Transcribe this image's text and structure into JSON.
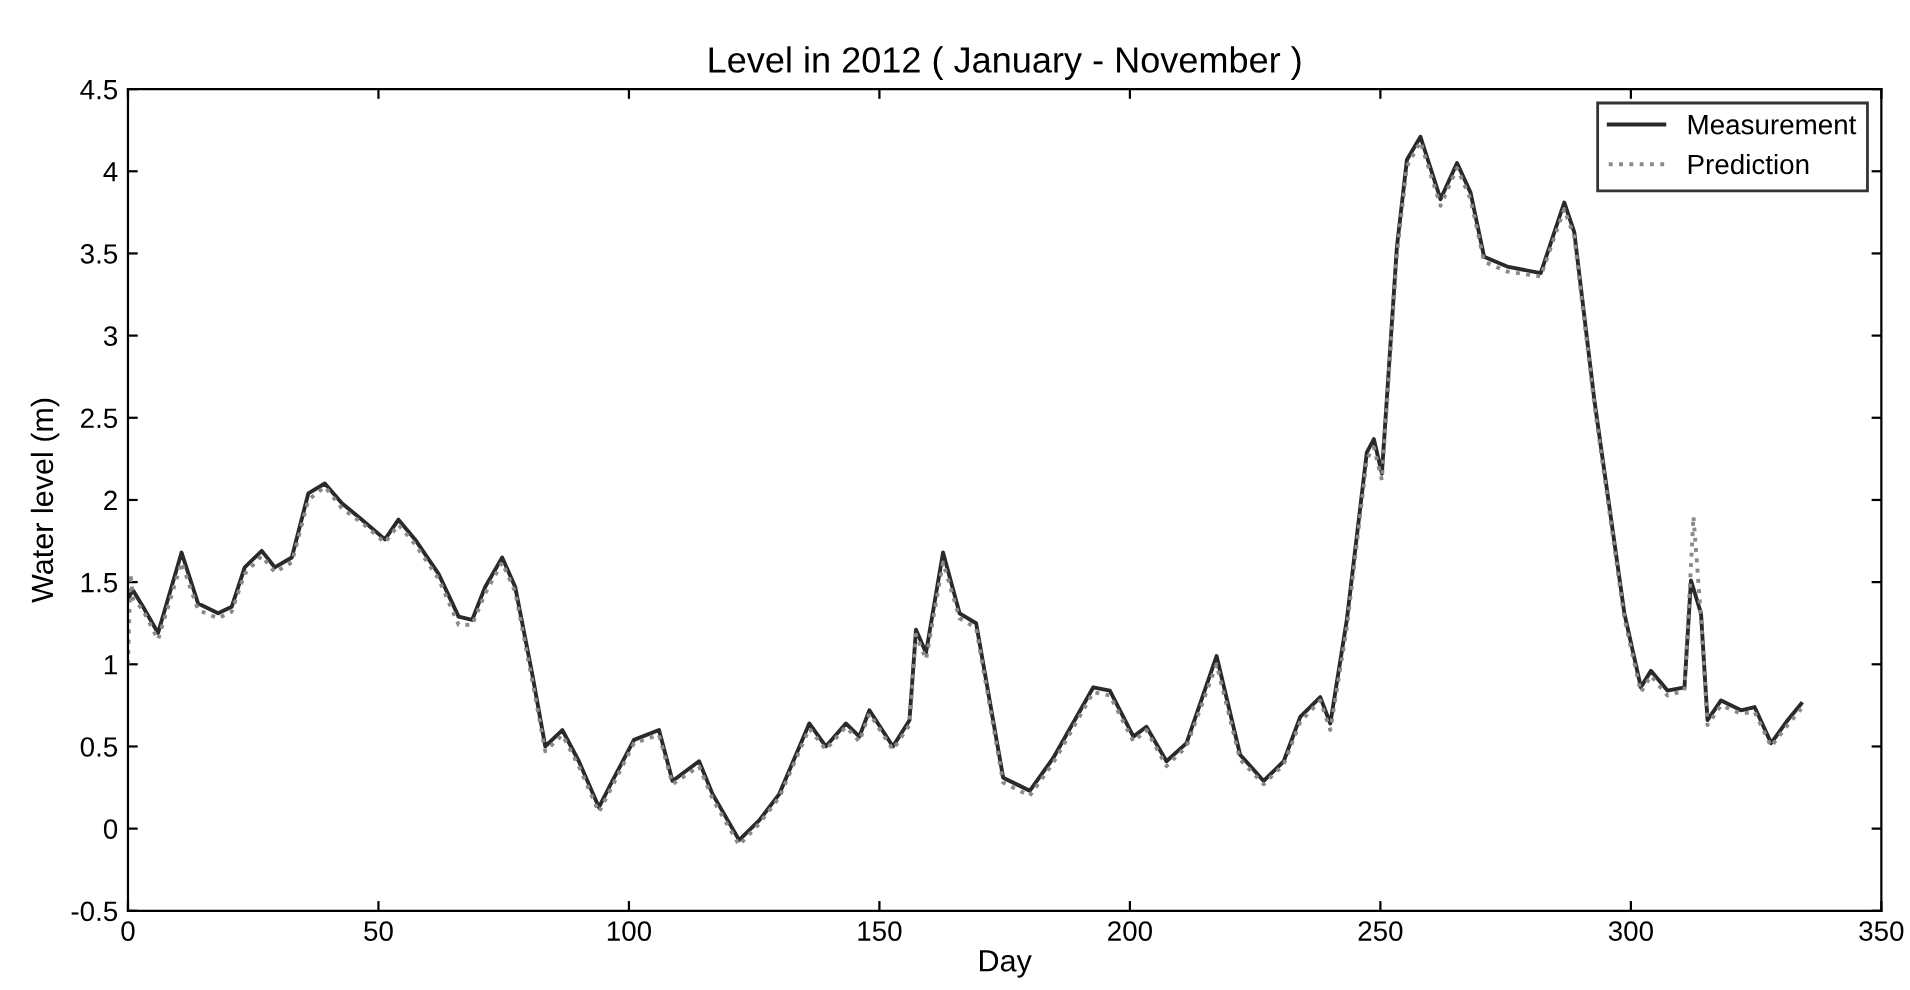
{
  "chart_data": {
    "type": "line",
    "title": "Level in 2012 ( January - November )",
    "xlabel": "Day",
    "ylabel": "Water level (m)",
    "xlim": [
      0,
      350
    ],
    "xticks": [
      0,
      50,
      100,
      150,
      200,
      250,
      300,
      350
    ],
    "ylim": [
      -0.5,
      4.5
    ],
    "yticks": [
      -0.5,
      0,
      0.5,
      1,
      1.5,
      2,
      2.5,
      3,
      3.5,
      4,
      4.5
    ],
    "grid": false,
    "legend": "top right",
    "series": [
      {
        "name": "Measurement",
        "color": "#2a2a2a",
        "line_style": "solid",
        "x": [
          0,
          1,
          3,
          6,
          10.7,
          14,
          18,
          20.7,
          23.3,
          26.7,
          29.3,
          32.7,
          36,
          39.3,
          42.7,
          46.7,
          51.3,
          54,
          57.3,
          62,
          66,
          68.7,
          71.3,
          74.7,
          77.3,
          80.7,
          83.3,
          86.7,
          90,
          94,
          96.7,
          101,
          106,
          108.7,
          114,
          116.7,
          122,
          126,
          130,
          136,
          139.3,
          143.3,
          146,
          148,
          152.7,
          156,
          157.3,
          159.3,
          162.7,
          166,
          169.3,
          174.7,
          180,
          184.7,
          192.7,
          196,
          200.7,
          203.3,
          207.3,
          211.3,
          217.3,
          222,
          226.7,
          230.7,
          234,
          238,
          240,
          243.3,
          247.3,
          248.7,
          250.3,
          253.3,
          255.3,
          258,
          262,
          265.3,
          268,
          270.7,
          275.3,
          282,
          286.7,
          288.7,
          292.7,
          298.7,
          302,
          304,
          307.3,
          310.7,
          312,
          314,
          315.3,
          318,
          322,
          324.7,
          328,
          331.3,
          334
        ],
        "values": [
          1.4,
          1.45,
          1.35,
          1.19,
          1.68,
          1.37,
          1.31,
          1.35,
          1.59,
          1.69,
          1.59,
          1.65,
          2.04,
          2.1,
          1.98,
          1.88,
          1.76,
          1.88,
          1.76,
          1.55,
          1.29,
          1.27,
          1.47,
          1.65,
          1.47,
          0.94,
          0.5,
          0.6,
          0.41,
          0.13,
          0.29,
          0.54,
          0.6,
          0.29,
          0.41,
          0.21,
          -0.07,
          0.05,
          0.21,
          0.64,
          0.5,
          0.64,
          0.56,
          0.72,
          0.5,
          0.66,
          1.21,
          1.07,
          1.68,
          1.31,
          1.25,
          0.31,
          0.23,
          0.43,
          0.86,
          0.84,
          0.56,
          0.62,
          0.41,
          0.52,
          1.05,
          0.45,
          0.29,
          0.41,
          0.68,
          0.8,
          0.64,
          1.27,
          2.29,
          2.37,
          2.16,
          3.54,
          4.07,
          4.21,
          3.83,
          4.05,
          3.87,
          3.48,
          3.42,
          3.38,
          3.81,
          3.63,
          2.61,
          1.31,
          0.86,
          0.96,
          0.84,
          0.86,
          1.51,
          1.31,
          0.66,
          0.78,
          0.72,
          0.74,
          0.52,
          0.66,
          0.76
        ]
      },
      {
        "name": "Prediction",
        "color": "#8a8a8a",
        "line_style": "dotted",
        "x": [
          0,
          0.5,
          1,
          3,
          6,
          10.7,
          14,
          18,
          20.7,
          23.3,
          26.7,
          29.3,
          32.7,
          36,
          39.3,
          42.7,
          46.7,
          51.3,
          54,
          57.3,
          62,
          66,
          68.7,
          71.3,
          74.7,
          77.3,
          80.7,
          83.3,
          86.7,
          90,
          94,
          96.7,
          101,
          106,
          108.7,
          114,
          116.7,
          122,
          126,
          130,
          136,
          139.3,
          143.3,
          146,
          148,
          152.7,
          156,
          157.3,
          159.3,
          162.7,
          166,
          169.3,
          174.7,
          180,
          184.7,
          192.7,
          196,
          200.7,
          203.3,
          207.3,
          211.3,
          217.3,
          222,
          226.7,
          230.7,
          234,
          238,
          240,
          243.3,
          247.3,
          248.7,
          250.3,
          253.3,
          255.3,
          258,
          262,
          265.3,
          268,
          270.7,
          275.3,
          282,
          286.7,
          288.7,
          292.7,
          298.7,
          302,
          304,
          307.3,
          310.7,
          312.5,
          314,
          315.3,
          318,
          322,
          324.7,
          328,
          331.3,
          334
        ],
        "values": [
          1.0,
          1.55,
          1.4,
          1.33,
          1.15,
          1.62,
          1.33,
          1.28,
          1.32,
          1.55,
          1.66,
          1.56,
          1.62,
          2.0,
          2.08,
          1.95,
          1.86,
          1.74,
          1.85,
          1.73,
          1.52,
          1.24,
          1.24,
          1.43,
          1.62,
          1.44,
          0.9,
          0.47,
          0.57,
          0.38,
          0.1,
          0.26,
          0.52,
          0.57,
          0.27,
          0.38,
          0.18,
          -0.1,
          0.03,
          0.19,
          0.61,
          0.48,
          0.62,
          0.53,
          0.7,
          0.48,
          0.63,
          1.18,
          1.03,
          1.62,
          1.28,
          1.22,
          0.28,
          0.2,
          0.4,
          0.83,
          0.81,
          0.53,
          0.6,
          0.38,
          0.5,
          1.0,
          0.42,
          0.27,
          0.39,
          0.65,
          0.78,
          0.6,
          1.22,
          2.25,
          2.32,
          2.12,
          3.5,
          4.03,
          4.18,
          3.79,
          4.02,
          3.83,
          3.45,
          3.39,
          3.36,
          3.77,
          3.6,
          2.58,
          1.28,
          0.83,
          0.93,
          0.81,
          0.84,
          1.9,
          1.28,
          0.63,
          0.75,
          0.7,
          0.71,
          0.5,
          0.63,
          0.73
        ]
      }
    ]
  }
}
